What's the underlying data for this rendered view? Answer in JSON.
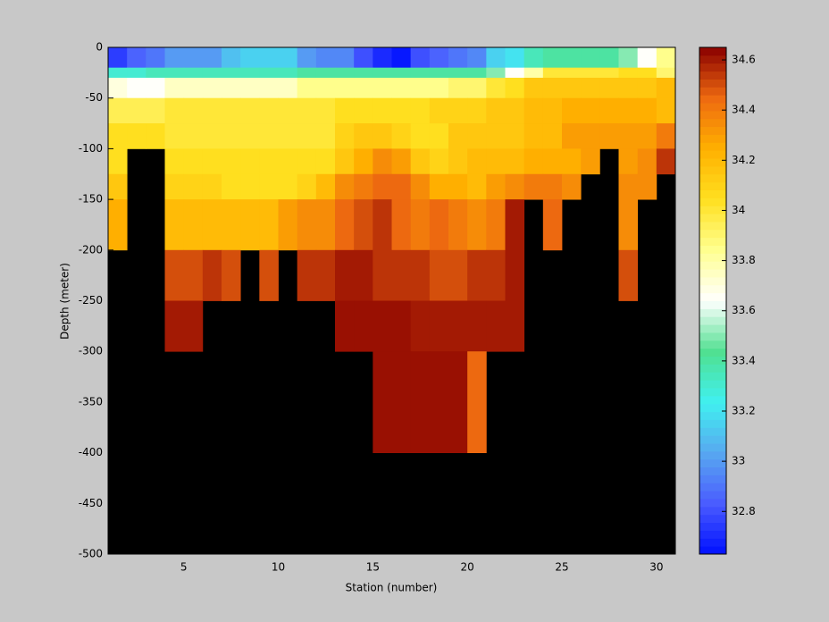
{
  "chart_data": {
    "type": "heatmap",
    "x_label": "Station (number)",
    "y_label": "Depth (meter)",
    "x": [
      1,
      2,
      3,
      4,
      5,
      6,
      7,
      8,
      9,
      10,
      11,
      12,
      13,
      14,
      15,
      16,
      17,
      18,
      19,
      20,
      21,
      22,
      23,
      24,
      25,
      26,
      27,
      28,
      29,
      30,
      31
    ],
    "y": [
      0,
      -20,
      -30,
      -50,
      -75,
      -100,
      -125,
      -150,
      -200,
      -250,
      -300,
      -400,
      -500
    ],
    "values": [
      [
        32.75,
        32.85,
        32.9,
        33.0,
        33.0,
        33.0,
        33.1,
        33.15,
        33.15,
        33.15,
        33.0,
        32.95,
        32.95,
        32.8,
        32.7,
        32.65,
        32.8,
        32.85,
        32.9,
        32.95,
        33.15,
        33.2,
        33.35,
        33.4,
        33.4,
        33.4,
        33.4,
        33.5,
        33.65,
        33.85
      ],
      [
        33.3,
        33.3,
        33.35,
        33.35,
        33.35,
        33.35,
        33.35,
        33.35,
        33.35,
        33.35,
        33.4,
        33.4,
        33.4,
        33.4,
        33.4,
        33.4,
        33.4,
        33.4,
        33.4,
        33.4,
        33.5,
        33.65,
        33.8,
        34.0,
        34.0,
        34.0,
        34.0,
        34.05,
        34.05,
        33.9
      ],
      [
        33.7,
        33.65,
        33.65,
        33.75,
        33.75,
        33.75,
        33.75,
        33.75,
        33.75,
        33.75,
        33.85,
        33.85,
        33.85,
        33.85,
        33.85,
        33.85,
        33.85,
        33.85,
        33.9,
        33.9,
        34.0,
        34.05,
        34.15,
        34.15,
        34.15,
        34.15,
        34.15,
        34.15,
        34.15,
        34.2
      ],
      [
        33.95,
        33.95,
        33.95,
        34.0,
        34.0,
        34.0,
        34.0,
        34.0,
        34.0,
        34.0,
        34.0,
        34.0,
        34.05,
        34.05,
        34.05,
        34.05,
        34.05,
        34.1,
        34.1,
        34.1,
        34.15,
        34.15,
        34.2,
        34.2,
        34.25,
        34.25,
        34.25,
        34.25,
        34.25,
        34.2
      ],
      [
        34.05,
        34.05,
        34.05,
        34.0,
        34.0,
        34.0,
        34.0,
        34.0,
        34.0,
        34.0,
        34.0,
        34.0,
        34.1,
        34.15,
        34.15,
        34.1,
        34.05,
        34.05,
        34.15,
        34.15,
        34.15,
        34.15,
        34.2,
        34.2,
        34.3,
        34.3,
        34.3,
        34.3,
        34.3,
        34.4
      ],
      [
        34.05,
        null,
        null,
        34.05,
        34.05,
        34.05,
        34.05,
        34.05,
        34.05,
        34.05,
        34.05,
        34.05,
        34.15,
        34.25,
        34.35,
        34.3,
        34.15,
        34.1,
        34.15,
        34.2,
        34.2,
        34.2,
        34.25,
        34.25,
        34.25,
        34.3,
        null,
        34.3,
        34.35,
        34.55
      ],
      [
        34.15,
        null,
        null,
        34.1,
        34.1,
        34.1,
        34.05,
        34.05,
        34.05,
        34.05,
        34.1,
        34.2,
        34.35,
        34.4,
        34.45,
        34.45,
        34.35,
        34.25,
        34.25,
        34.2,
        34.3,
        34.35,
        34.4,
        34.4,
        34.35,
        null,
        null,
        34.35,
        34.35,
        null
      ],
      [
        34.25,
        null,
        null,
        34.2,
        34.2,
        34.2,
        34.2,
        34.2,
        34.2,
        34.3,
        34.35,
        34.35,
        34.45,
        34.5,
        34.55,
        34.45,
        34.4,
        34.45,
        34.4,
        34.35,
        34.4,
        34.6,
        null,
        34.45,
        null,
        null,
        null,
        34.35,
        null,
        null
      ],
      [
        null,
        null,
        null,
        34.5,
        34.5,
        34.55,
        34.5,
        null,
        34.5,
        null,
        34.55,
        34.55,
        34.6,
        34.6,
        34.55,
        34.55,
        34.55,
        34.5,
        34.5,
        34.55,
        34.55,
        34.6,
        null,
        null,
        null,
        null,
        null,
        34.5,
        null,
        null
      ],
      [
        null,
        null,
        null,
        34.6,
        34.6,
        null,
        null,
        null,
        null,
        null,
        null,
        null,
        34.62,
        34.62,
        34.62,
        34.62,
        34.6,
        34.6,
        34.6,
        34.6,
        34.6,
        34.6,
        null,
        null,
        null,
        null,
        null,
        null,
        null,
        null
      ],
      [
        null,
        null,
        null,
        null,
        null,
        null,
        null,
        null,
        null,
        null,
        null,
        null,
        null,
        null,
        34.62,
        34.62,
        34.62,
        34.62,
        34.62,
        34.45,
        null,
        null,
        null,
        null,
        null,
        null,
        null,
        null,
        null,
        null
      ],
      [
        null,
        null,
        null,
        null,
        null,
        null,
        null,
        null,
        null,
        null,
        null,
        null,
        null,
        null,
        null,
        null,
        null,
        null,
        null,
        null,
        null,
        null,
        null,
        null,
        null,
        null,
        null,
        null,
        null,
        null
      ]
    ],
    "xlim": [
      1,
      31
    ],
    "ylim": [
      -500,
      0
    ],
    "xticks": [
      5,
      10,
      15,
      20,
      25,
      30
    ],
    "yticks": [
      0,
      -50,
      -100,
      -150,
      -200,
      -250,
      -300,
      -350,
      -400,
      -450,
      -500
    ],
    "clim": [
      32.63,
      34.65
    ],
    "cticks": [
      32.8,
      33,
      33.2,
      33.4,
      33.6,
      33.8,
      34,
      34.2,
      34.4,
      34.6
    ],
    "colormap": [
      "#0010ff",
      "#4a5cff",
      "#58a8f0",
      "#40f0f0",
      "#50e090",
      "#ffffff",
      "#ffff90",
      "#ffe020",
      "#ffb000",
      "#ee6a10",
      "#8a0000"
    ],
    "missing_color": "#000000"
  }
}
